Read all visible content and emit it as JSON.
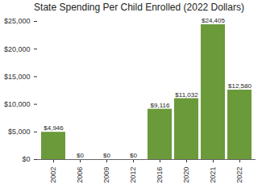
{
  "chart_data": {
    "type": "bar",
    "title": "State Spending Per Child Enrolled (2022 Dollars)",
    "categories": [
      "2002",
      "2006",
      "2009",
      "2012",
      "2016",
      "2020",
      "2021",
      "2022"
    ],
    "values": [
      4946,
      0,
      0,
      0,
      9116,
      11032,
      24405,
      12580
    ],
    "value_labels": [
      "$4,946",
      "$0",
      "$0",
      "$0",
      "$9,116",
      "$11,032",
      "$24,405",
      "$12,580"
    ],
    "data_labels": true,
    "color": "#6a9a3a",
    "ylim": [
      0,
      25000
    ],
    "yticks": [
      {
        "value": 0,
        "label": "$0"
      },
      {
        "value": 5000,
        "label": "$5,000"
      },
      {
        "value": 10000,
        "label": "$10,000"
      },
      {
        "value": 15000,
        "label": "$15,000"
      },
      {
        "value": 20000,
        "label": "$20,000"
      },
      {
        "value": 25000,
        "label": "$25,000"
      }
    ],
    "grid": false
  }
}
